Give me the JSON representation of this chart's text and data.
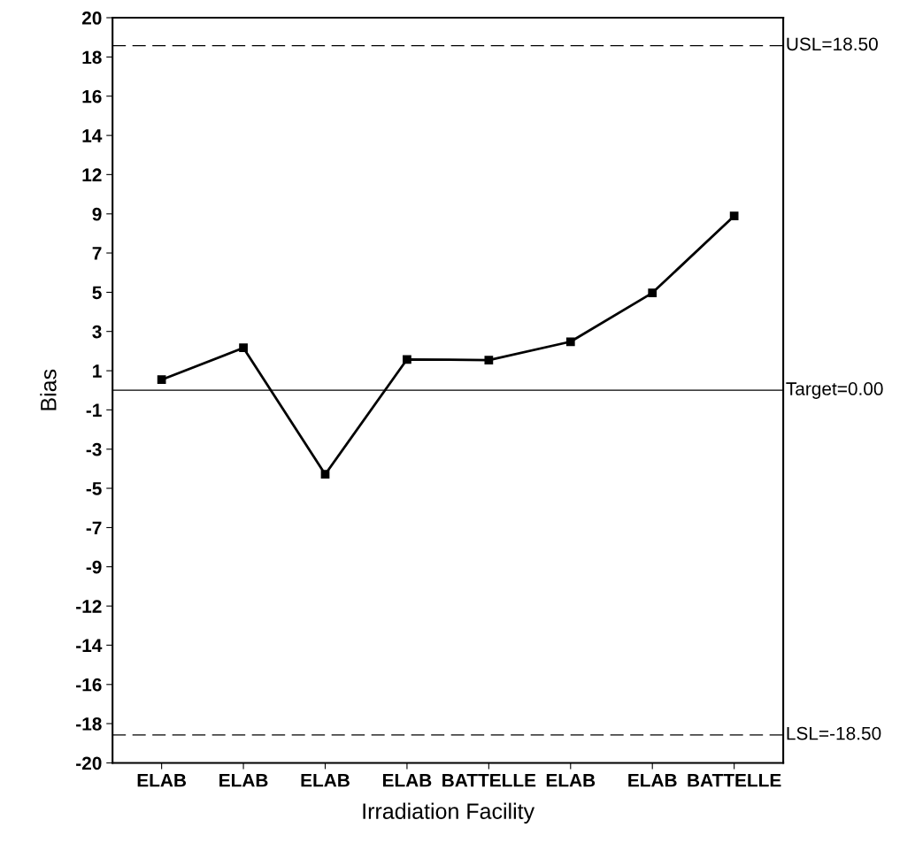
{
  "chart_data": {
    "type": "line",
    "xlabel": "Irradiation Facility",
    "ylabel": "Bias",
    "categories": [
      "ELAB",
      "ELAB",
      "ELAB",
      "ELAB",
      "BATTELLE",
      "ELAB",
      "ELAB",
      "BATTELLE"
    ],
    "series": [
      {
        "color": "#000000",
        "values": [
          0.57,
          2.28,
          -4.51,
          1.66,
          1.62,
          2.61,
          5.23,
          9.36
        ]
      }
    ],
    "ylim": [
      -20,
      20
    ],
    "yticks": [
      {
        "value": -20,
        "label": "-20"
      },
      {
        "value": -17.89,
        "label": "-18"
      },
      {
        "value": -15.79,
        "label": "-16"
      },
      {
        "value": -13.68,
        "label": "-14"
      },
      {
        "value": -11.58,
        "label": "-12"
      },
      {
        "value": -9.47,
        "label": "-9"
      },
      {
        "value": -7.37,
        "label": "-7"
      },
      {
        "value": -5.26,
        "label": "-5"
      },
      {
        "value": -3.16,
        "label": "-3"
      },
      {
        "value": -1.05,
        "label": "-1"
      },
      {
        "value": 1.05,
        "label": "1"
      },
      {
        "value": 3.16,
        "label": "3"
      },
      {
        "value": 5.26,
        "label": "5"
      },
      {
        "value": 7.37,
        "label": "7"
      },
      {
        "value": 9.47,
        "label": "9"
      },
      {
        "value": 11.58,
        "label": "12"
      },
      {
        "value": 13.68,
        "label": "14"
      },
      {
        "value": 15.79,
        "label": "16"
      },
      {
        "value": 17.89,
        "label": "18"
      },
      {
        "value": 20,
        "label": "20"
      }
    ],
    "ref_lines": [
      {
        "axis": "y",
        "value": 18.5,
        "label": "USL=18.50",
        "line_style": "dashed",
        "color": "#000000"
      },
      {
        "axis": "y",
        "value": 0,
        "label": "Target=0.00",
        "line_style": "solid",
        "color": "#000000"
      },
      {
        "axis": "y",
        "value": -18.5,
        "label": "LSL=-18.50",
        "line_style": "dashed",
        "color": "#000000"
      }
    ],
    "marker": "square",
    "line_style": "solid",
    "grid": false
  }
}
